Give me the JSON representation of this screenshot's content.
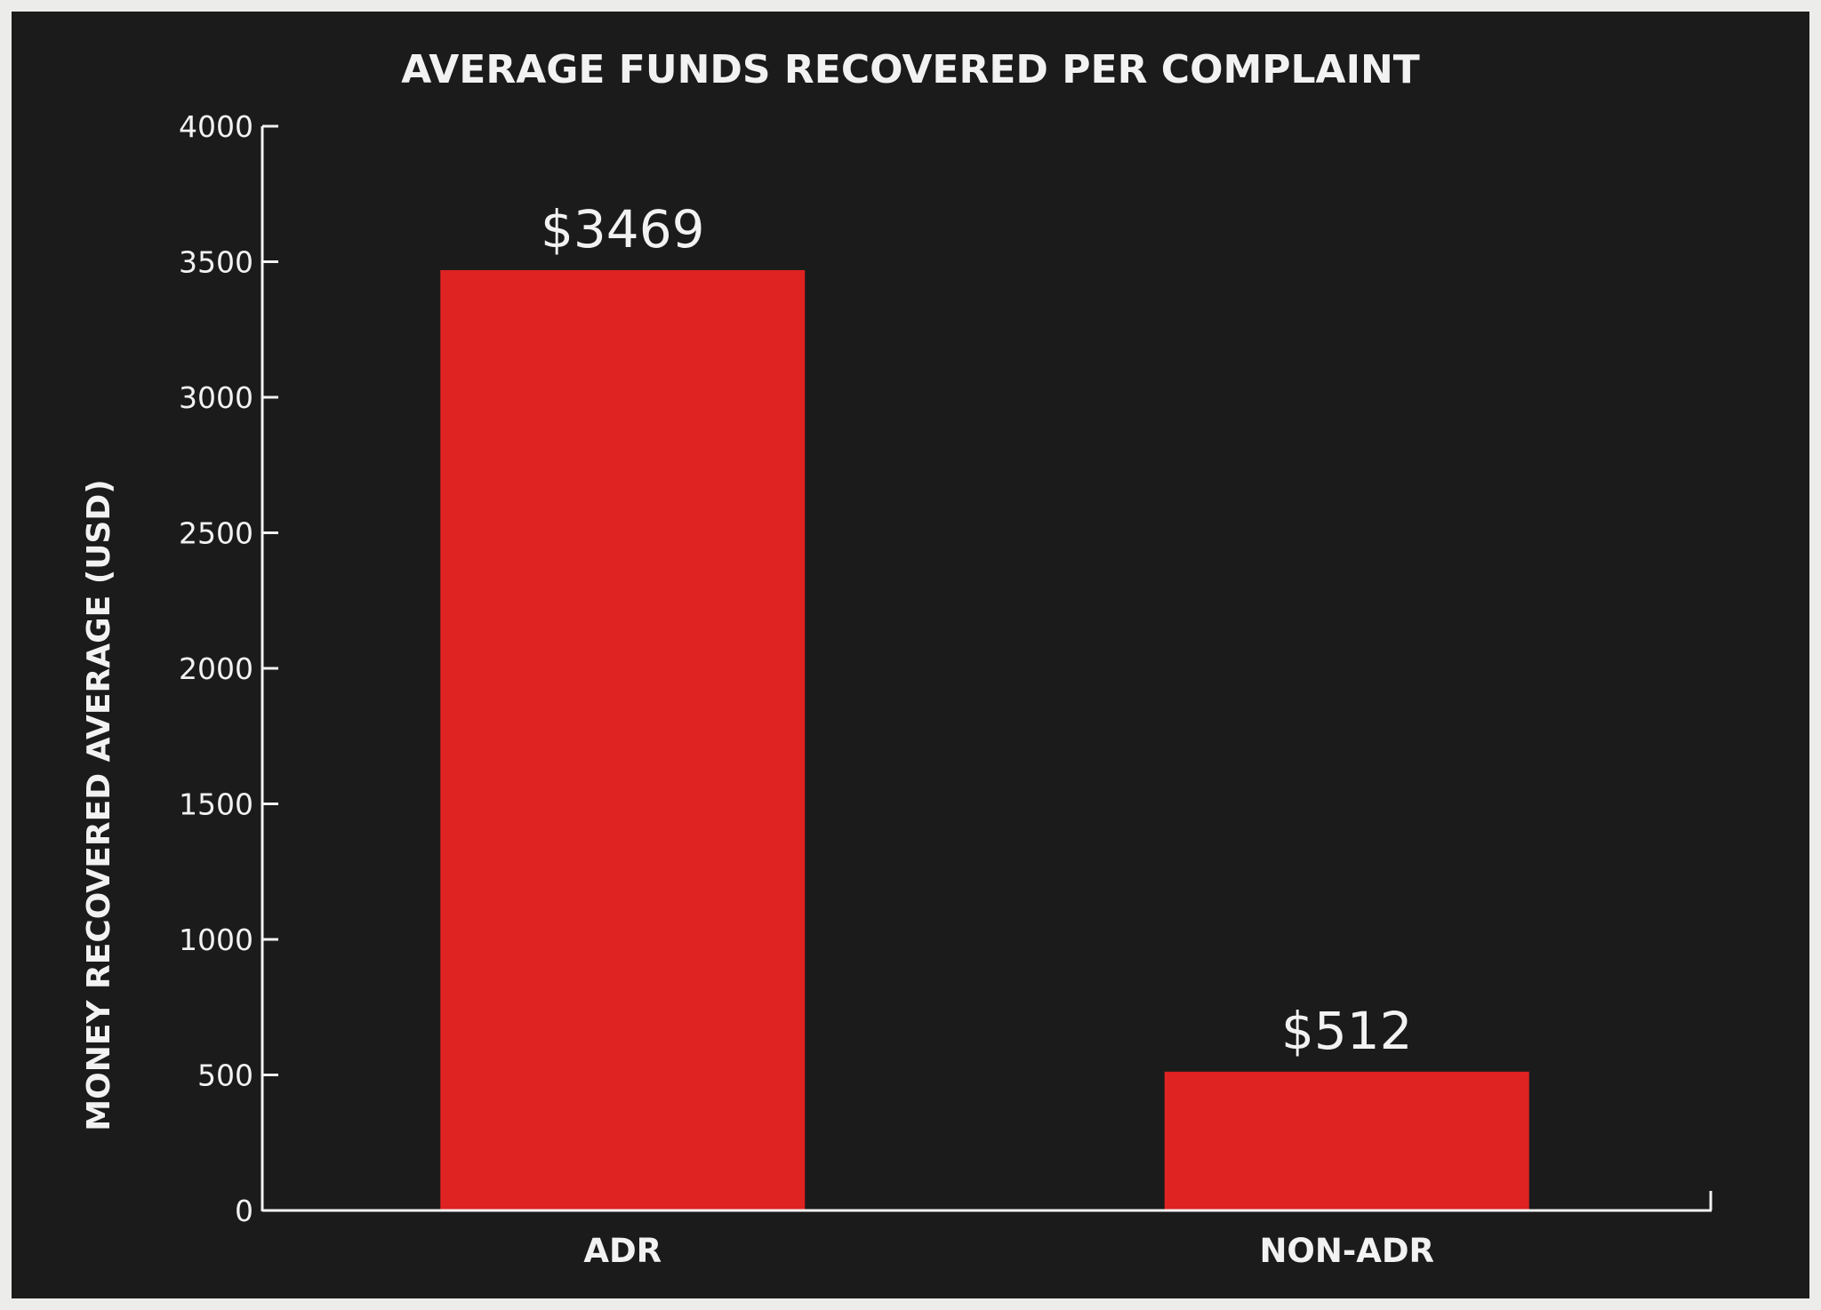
{
  "chart_data": {
    "type": "bar",
    "title": "AVERAGE FUNDS RECOVERED PER COMPLAINT",
    "xlabel": "",
    "ylabel": "MONEY RECOVERED AVERAGE (USD)",
    "categories": [
      "ADR",
      "NON-ADR"
    ],
    "values": [
      3469,
      512
    ],
    "value_labels": [
      "$3469",
      "$512"
    ],
    "ylim": [
      0,
      4000
    ],
    "yticks": [
      0,
      500,
      1000,
      1500,
      2000,
      2500,
      3000,
      3500,
      4000
    ],
    "grid": false,
    "legend": "none",
    "bar_color": "#df2222",
    "background_color": "#1b1b1b",
    "text_color": "#f2f2f2"
  }
}
